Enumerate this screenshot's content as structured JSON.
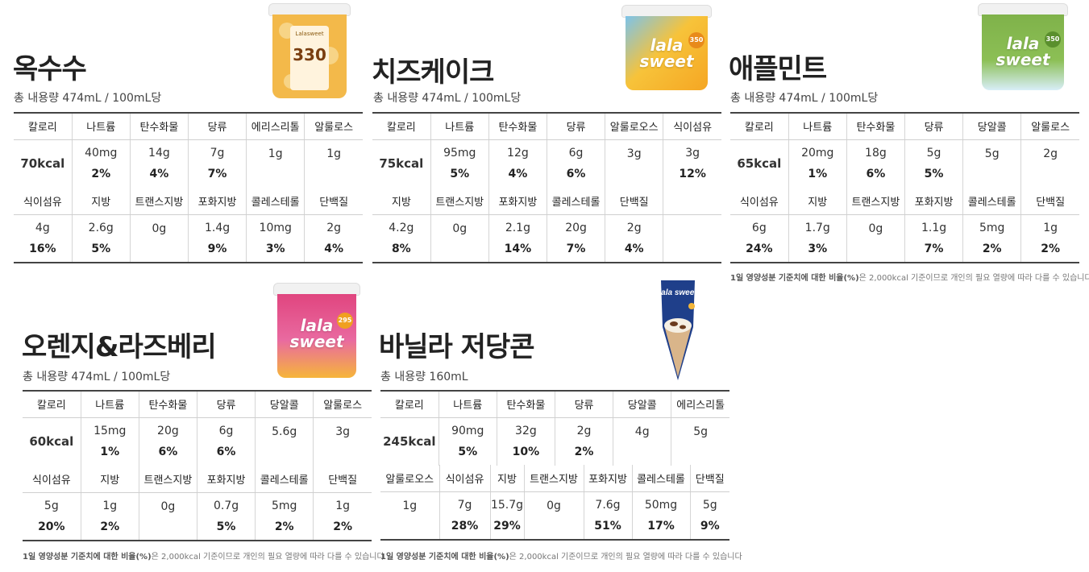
{
  "note": {
    "bold": "1일 영양성분 기준치에 대한 비율(%)",
    "rest": "은 2,000kcal 기준이므로 개인의 필요 열량에 따라 다를 수 있습니다"
  },
  "products": [
    {
      "name": "옥수수",
      "volume": "총 내용량 474mL / 100mL당",
      "image_label": "330",
      "image_brand": "Lalasweet",
      "image_color": "#f2b544",
      "row1": [
        {
          "label": "칼로리",
          "amount": "70kcal",
          "pct": ""
        },
        {
          "label": "나트륨",
          "amount": "40mg",
          "pct": "2%"
        },
        {
          "label": "탄수화물",
          "amount": "14g",
          "pct": "4%"
        },
        {
          "label": "당류",
          "amount": "7g",
          "pct": "7%"
        },
        {
          "label": "에리스리톨",
          "amount": "1g",
          "pct": ""
        },
        {
          "label": "알룰로스",
          "amount": "1g",
          "pct": ""
        }
      ],
      "row2": [
        {
          "label": "식이섬유",
          "amount": "4g",
          "pct": "16%"
        },
        {
          "label": "지방",
          "amount": "2.6g",
          "pct": "5%"
        },
        {
          "label": "트랜스지방",
          "amount": "0g",
          "pct": ""
        },
        {
          "label": "포화지방",
          "amount": "1.4g",
          "pct": "9%"
        },
        {
          "label": "콜레스테롤",
          "amount": "10mg",
          "pct": "3%"
        },
        {
          "label": "단백질",
          "amount": "2g",
          "pct": "4%"
        }
      ]
    },
    {
      "name": "치즈케이크",
      "volume": "총 내용량 474mL / 100mL당",
      "image_label": "lala sweet",
      "image_badge": "350",
      "image_color": "#f7c33a",
      "row1": [
        {
          "label": "칼로리",
          "amount": "75kcal",
          "pct": ""
        },
        {
          "label": "나트륨",
          "amount": "95mg",
          "pct": "5%"
        },
        {
          "label": "탄수화물",
          "amount": "12g",
          "pct": "4%"
        },
        {
          "label": "당류",
          "amount": "6g",
          "pct": "6%"
        },
        {
          "label": "알룰로오스",
          "amount": "3g",
          "pct": ""
        },
        {
          "label": "식이섬유",
          "amount": "3g",
          "pct": "12%"
        }
      ],
      "row2": [
        {
          "label": "지방",
          "amount": "4.2g",
          "pct": "8%"
        },
        {
          "label": "트랜스지방",
          "amount": "0g",
          "pct": ""
        },
        {
          "label": "포화지방",
          "amount": "2.1g",
          "pct": "14%"
        },
        {
          "label": "콜레스테롤",
          "amount": "20g",
          "pct": "7%"
        },
        {
          "label": "단백질",
          "amount": "2g",
          "pct": "4%"
        },
        {
          "label": "",
          "amount": "",
          "pct": ""
        }
      ]
    },
    {
      "name": "애플민트",
      "volume": "총 내용량 474mL / 100mL당",
      "image_label": "lala sweet",
      "image_badge": "350",
      "image_color": "#7fb24a",
      "row1": [
        {
          "label": "칼로리",
          "amount": "65kcal",
          "pct": ""
        },
        {
          "label": "나트륨",
          "amount": "20mg",
          "pct": "1%"
        },
        {
          "label": "탄수화물",
          "amount": "18g",
          "pct": "6%"
        },
        {
          "label": "당류",
          "amount": "5g",
          "pct": "5%"
        },
        {
          "label": "당알콜",
          "amount": "5g",
          "pct": ""
        },
        {
          "label": "알룰로스",
          "amount": "2g",
          "pct": ""
        }
      ],
      "row2": [
        {
          "label": "식이섬유",
          "amount": "6g",
          "pct": "24%"
        },
        {
          "label": "지방",
          "amount": "1.7g",
          "pct": "3%"
        },
        {
          "label": "트랜스지방",
          "amount": "0g",
          "pct": ""
        },
        {
          "label": "포화지방",
          "amount": "1.1g",
          "pct": "7%"
        },
        {
          "label": "콜레스테롤",
          "amount": "5mg",
          "pct": "2%"
        },
        {
          "label": "단백질",
          "amount": "1g",
          "pct": "2%"
        }
      ]
    },
    {
      "name": "오렌지&라즈베리",
      "volume": "총 내용량 474mL / 100mL당",
      "image_label": "lala sweet",
      "image_badge": "295",
      "image_color": "#e0457f",
      "row1": [
        {
          "label": "칼로리",
          "amount": "60kcal",
          "pct": ""
        },
        {
          "label": "나트륨",
          "amount": "15mg",
          "pct": "1%"
        },
        {
          "label": "탄수화물",
          "amount": "20g",
          "pct": "6%"
        },
        {
          "label": "당류",
          "amount": "6g",
          "pct": "6%"
        },
        {
          "label": "당알콜",
          "amount": "5.6g",
          "pct": ""
        },
        {
          "label": "알룰로스",
          "amount": "3g",
          "pct": ""
        }
      ],
      "row2": [
        {
          "label": "식이섬유",
          "amount": "5g",
          "pct": "20%"
        },
        {
          "label": "지방",
          "amount": "1g",
          "pct": "2%"
        },
        {
          "label": "트랜스지방",
          "amount": "0g",
          "pct": ""
        },
        {
          "label": "포화지방",
          "amount": "0.7g",
          "pct": "5%"
        },
        {
          "label": "콜레스테롤",
          "amount": "5mg",
          "pct": "2%"
        },
        {
          "label": "단백질",
          "amount": "1g",
          "pct": "2%"
        }
      ]
    },
    {
      "name": "바닐라 저당콘",
      "volume": "총 내용량 160mL",
      "image_label": "lala sweet",
      "image_color": "#1f3f8a",
      "row1": [
        {
          "label": "칼로리",
          "amount": "245kcal",
          "pct": ""
        },
        {
          "label": "나트륨",
          "amount": "90mg",
          "pct": "5%"
        },
        {
          "label": "탄수화물",
          "amount": "32g",
          "pct": "10%"
        },
        {
          "label": "당류",
          "amount": "2g",
          "pct": "2%"
        },
        {
          "label": "당알콜",
          "amount": "4g",
          "pct": ""
        },
        {
          "label": "에리스리톨",
          "amount": "5g",
          "pct": ""
        }
      ],
      "row2": [
        {
          "label": "알룰로오스",
          "amount": "1g",
          "pct": ""
        },
        {
          "label": "식이섬유",
          "amount": "7g",
          "pct": "28%"
        },
        {
          "label": "지방",
          "amount": "15.7g",
          "pct": "29%"
        },
        {
          "label": "트랜스지방",
          "amount": "0g",
          "pct": ""
        },
        {
          "label": "포화지방",
          "amount": "7.6g",
          "pct": "51%"
        },
        {
          "label": "콜레스테롤",
          "amount": "50mg",
          "pct": "17%"
        },
        {
          "label": "단백질",
          "amount": "5g",
          "pct": "9%"
        }
      ]
    }
  ]
}
